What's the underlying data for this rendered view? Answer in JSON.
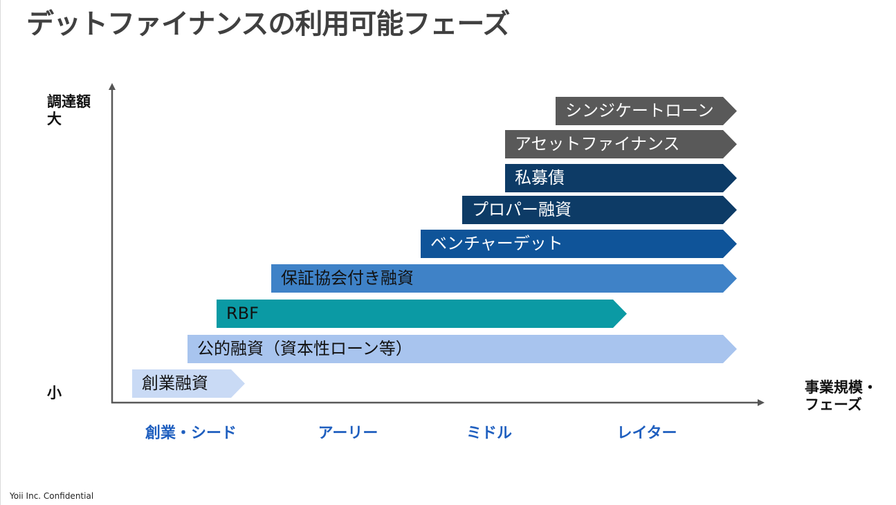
{
  "title": "デットファイナンスの利用可能フェーズ",
  "y_axis": {
    "label_top": "調達額",
    "label_large": "大",
    "label_small": "小"
  },
  "x_axis": {
    "label_line1": "事業規模・",
    "label_line2": "フェーズ"
  },
  "phases": [
    {
      "label": "創業・シード"
    },
    {
      "label": "アーリー"
    },
    {
      "label": "ミドル"
    },
    {
      "label": "レイター"
    }
  ],
  "colors": {
    "phase_text": "#1f5fbf",
    "bars": {
      "syndicate": "#595959",
      "asset": "#595959",
      "private_bond": "#0d3b66",
      "proper": "#0d3b66",
      "venture_debt": "#0f5499",
      "guarantee": "#3f82c7",
      "rbf": "#0b9aa4",
      "public": "#a8c4ee",
      "startup": "#c9daf5"
    }
  },
  "bars": {
    "syndicate": {
      "label": "シンジケートローン"
    },
    "asset": {
      "label": "アセットファイナンス"
    },
    "private_bond": {
      "label": "私募債"
    },
    "proper": {
      "label": "プロパー融資"
    },
    "venture_debt": {
      "label": "ベンチャーデット"
    },
    "guarantee": {
      "label": "保証協会付き融資"
    },
    "rbf": {
      "label": "RBF"
    },
    "public": {
      "label": "公的融資（資本性ローン等）"
    },
    "startup": {
      "label": "創業融資"
    }
  },
  "footer": "Yoii Inc. Confidential"
}
